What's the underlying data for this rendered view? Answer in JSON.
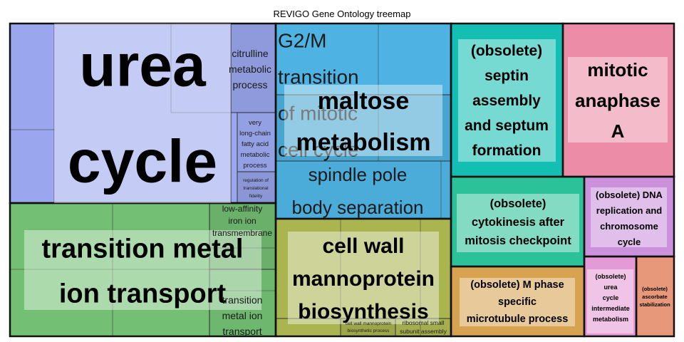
{
  "chart_data": {
    "type": "treemap",
    "title": "REVIGO Gene Ontology treemap",
    "groups": [
      {
        "name": "urea cycle",
        "color": "#9aa7ee",
        "terms": [
          {
            "label": "urea cycle",
            "value": 0.316
          },
          {
            "label": "citrulline metabolic process",
            "value": 0.042
          },
          {
            "label": "very long-chain fatty acid metabolic process",
            "value": 0.024
          },
          {
            "label": "regulation of translational fidelity",
            "value": 0.014
          }
        ]
      },
      {
        "name": "transition metal ion transport",
        "color": "#73bf73",
        "terms": [
          {
            "label": "transition metal ion transport",
            "value": 0.215
          },
          {
            "label": "low-affinity iron ion transmembrane",
            "value": 0.035
          },
          {
            "label": "transition metal ion transport",
            "value": 0.035
          }
        ]
      },
      {
        "name": "maltose metabolism",
        "color": "#4eb3e2",
        "terms": [
          {
            "label": "G2/M transition of mitotic cell cycle",
            "value": 0.096
          },
          {
            "label": "maltose metabolism",
            "value": 0.065
          },
          {
            "label": "spindle pole body separation",
            "value": 0.082
          }
        ]
      },
      {
        "name": "cell wall mannoprotein biosynthesis",
        "color": "#abb550",
        "terms": [
          {
            "label": "cell wall mannoprotein biosynthesis",
            "value": 0.12
          },
          {
            "label": "cell wall mannoprotein biosynthetic process",
            "value": 0.018
          },
          {
            "label": "ribosomal small subunit assembly",
            "value": 0.012
          }
        ]
      },
      {
        "name": "(obsolete) septin assembly and septum formation",
        "color": "#13bfb3",
        "terms": [
          {
            "label": "(obsolete) septin assembly and septum formation",
            "value": 0.081
          }
        ]
      },
      {
        "name": "mitotic anaphase A",
        "color": "#ed8ca6",
        "terms": [
          {
            "label": "mitotic anaphase A",
            "value": 0.078
          }
        ]
      },
      {
        "name": "(obsolete) cytokinesis after mitosis checkpoint",
        "color": "#2bc29a",
        "terms": [
          {
            "label": "(obsolete) cytokinesis after mitosis checkpoint",
            "value": 0.052
          }
        ]
      },
      {
        "name": "(obsolete) DNA replication and chromosome cycle",
        "color": "#cb91dc",
        "terms": [
          {
            "label": "(obsolete) DNA replication and chromosome cycle",
            "value": 0.046
          }
        ]
      },
      {
        "name": "(obsolete) M phase specific microtubule process",
        "color": "#d7a350",
        "terms": [
          {
            "label": "(obsolete) M phase specific microtubule process",
            "value": 0.058
          }
        ]
      },
      {
        "name": "(obsolete) urea cycle intermediate metabolism",
        "color": "#e49ad6",
        "terms": [
          {
            "label": "(obsolete) urea cycle intermediate metabolism",
            "value": 0.026
          }
        ]
      },
      {
        "name": "(obsolete) ascorbate stabilization",
        "color": "#e7987a",
        "terms": [
          {
            "label": "(obsolete) ascorbate stabilization",
            "value": 0.02
          }
        ]
      }
    ]
  }
}
